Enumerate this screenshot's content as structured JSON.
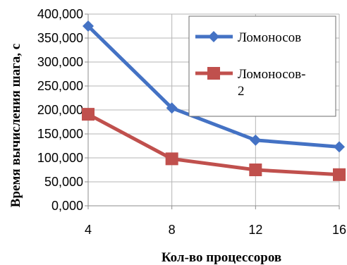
{
  "chart_data": {
    "type": "line",
    "xlabel": "Кол-во процессоров",
    "ylabel": "Время вычисления шага, с",
    "x": [
      4,
      8,
      12,
      16
    ],
    "x_tick_labels": [
      "4",
      "8",
      "12",
      "16"
    ],
    "ylim": [
      0,
      400
    ],
    "y_ticks": [
      0,
      50,
      100,
      150,
      200,
      250,
      300,
      350,
      400
    ],
    "y_tick_labels": [
      "0,000",
      "50,000",
      "100,000",
      "150,000",
      "200,000",
      "250,000",
      "300,000",
      "350,000",
      "400,000"
    ],
    "grid": true,
    "legend_position": "top-right",
    "series": [
      {
        "name": "Ломоносов",
        "values": [
          375,
          204,
          137,
          123
        ],
        "marker": "diamond",
        "color": "#4472C4"
      },
      {
        "name": "Ломоносов-2",
        "values": [
          191,
          98,
          75,
          65
        ],
        "marker": "square",
        "color": "#C0504D"
      }
    ]
  },
  "colors": {
    "grid": "#B5B5B5",
    "axis": "#8C8C8C",
    "legend_border": "#6E6E6E"
  }
}
